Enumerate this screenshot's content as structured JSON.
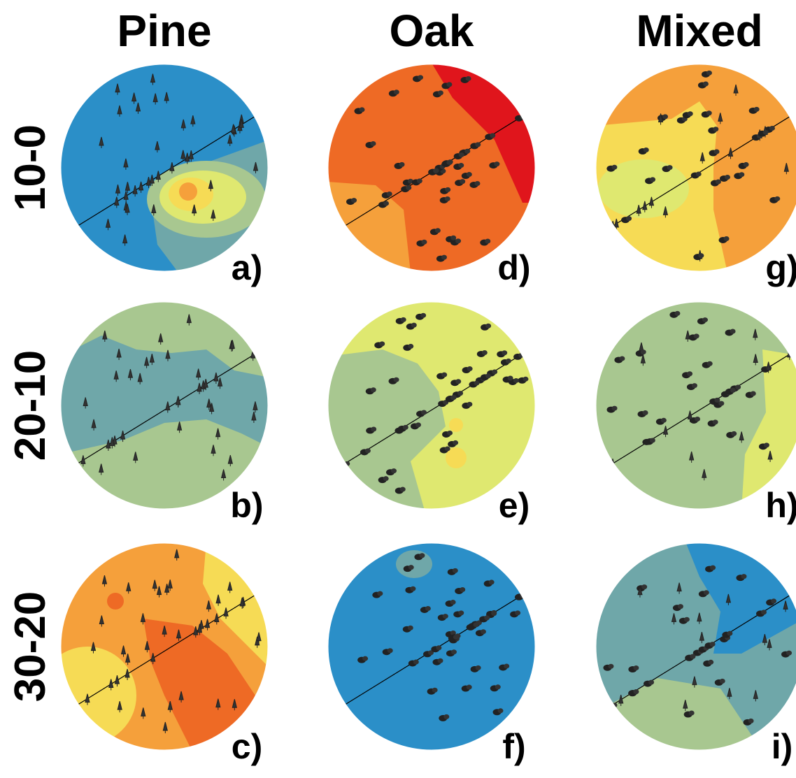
{
  "columns": [
    "Pine",
    "Oak",
    "Mixed"
  ],
  "rows": [
    "10-0",
    "20-10",
    "30-20"
  ],
  "panels": [
    "a)",
    "b)",
    "c)",
    "d)",
    "e)",
    "f)",
    "g)",
    "h)",
    "i)"
  ]
}
